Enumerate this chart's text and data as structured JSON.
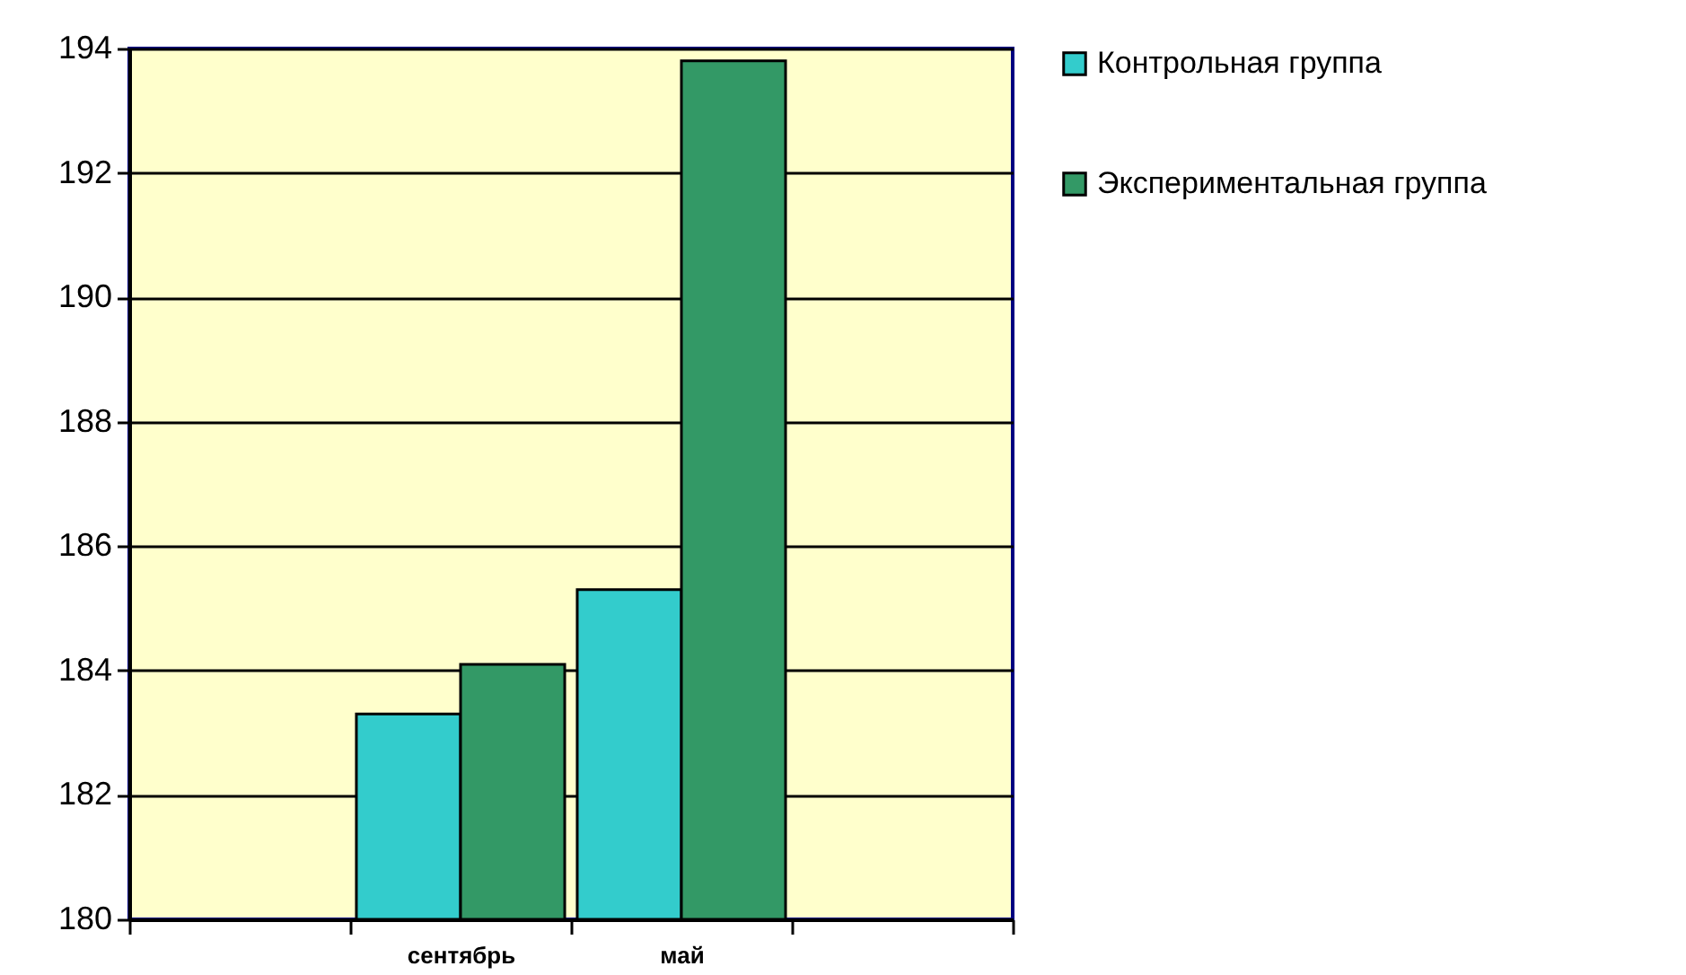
{
  "chart_data": {
    "type": "bar",
    "categories": [
      null,
      "сентябрь",
      "май",
      null
    ],
    "series": [
      {
        "name": "Контрольная группа",
        "color": "#33cccc",
        "values": [
          null,
          183.3,
          185.3,
          null
        ]
      },
      {
        "name": "Экспериментальная группа",
        "color": "#339966",
        "values": [
          null,
          184.1,
          193.8,
          null
        ]
      }
    ],
    "ylim": [
      180,
      194
    ],
    "yticks": [
      180,
      182,
      184,
      186,
      188,
      190,
      192,
      194
    ],
    "grid": "y",
    "legend": "right"
  }
}
